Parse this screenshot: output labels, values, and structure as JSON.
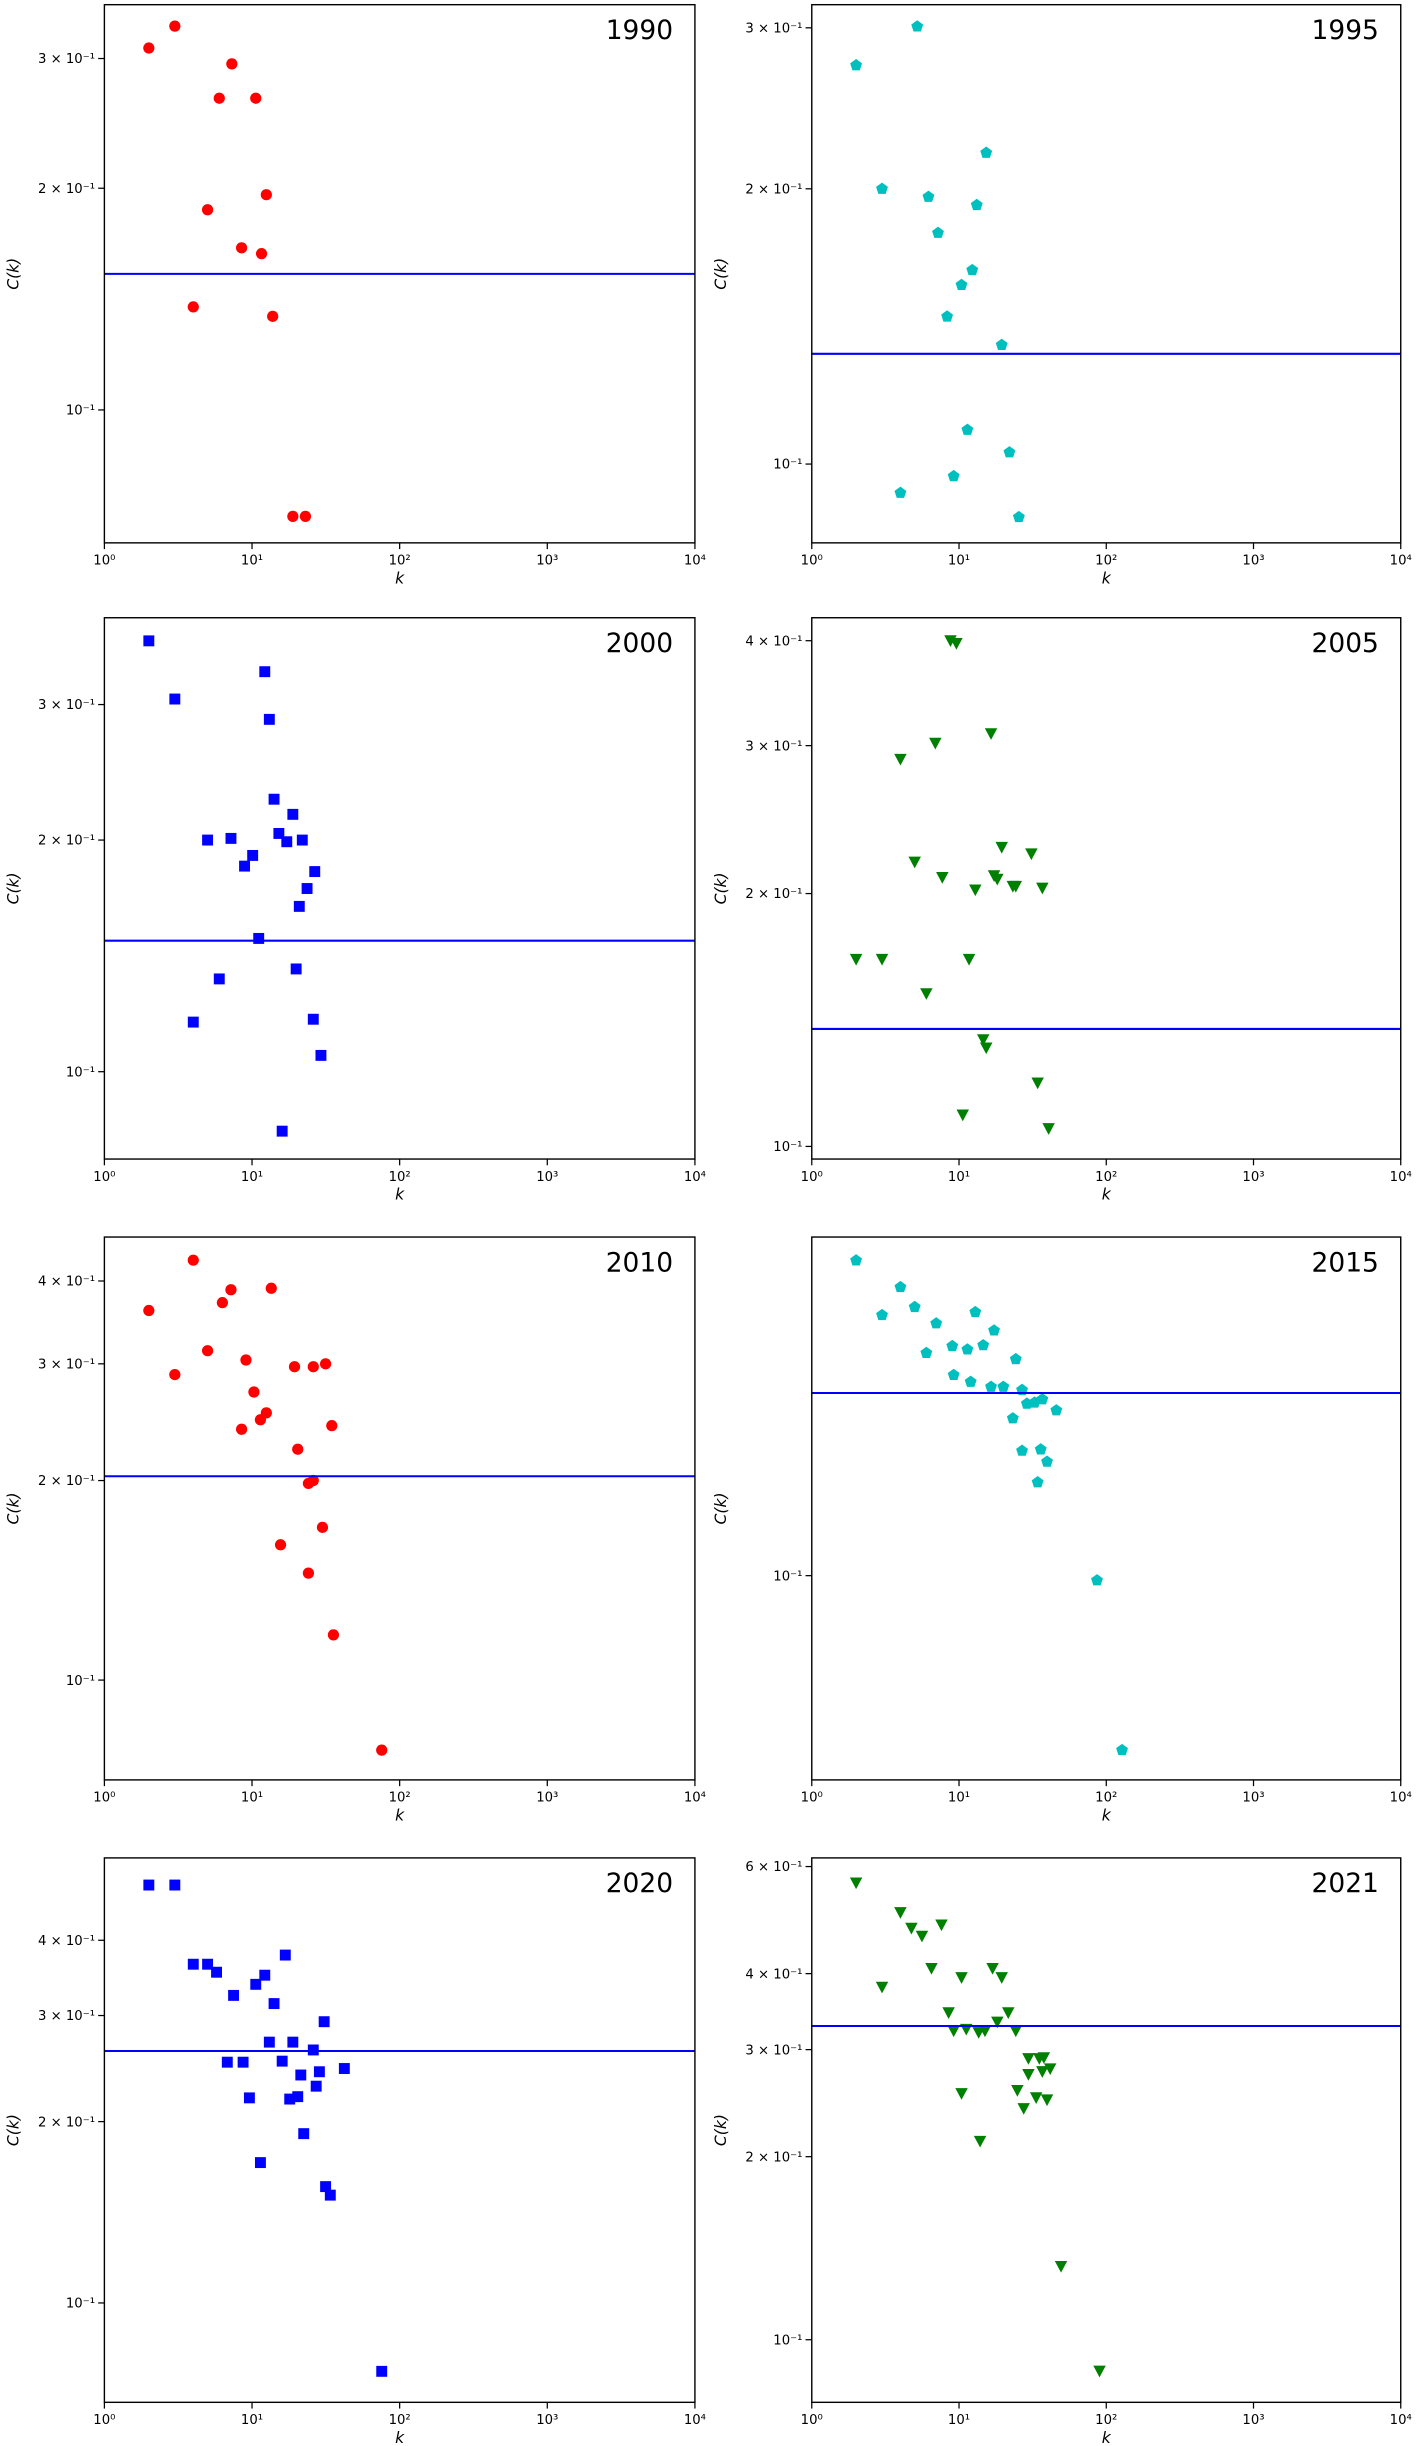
{
  "chart_data": [
    {
      "type": "scatter",
      "title": "1990",
      "xlabel": "k",
      "ylabel": "C(k)",
      "xscale": "log",
      "yscale": "log",
      "marker": "o",
      "color": "#ff0000",
      "x": [
        2,
        3,
        7.3,
        6,
        10.6,
        5,
        12.5,
        8.5,
        11.6,
        4,
        13.8,
        18.9,
        23
      ],
      "values": [
        0.31,
        0.332,
        0.295,
        0.265,
        0.265,
        0.187,
        0.196,
        0.166,
        0.163,
        0.138,
        0.134,
        0.0717,
        0.0717
      ],
      "hline": {
        "value": 0.153,
        "color": "#0000ff"
      },
      "xlim": [
        1,
        10000
      ],
      "xticks": [
        {
          "value": 1,
          "label": "10⁰"
        },
        {
          "value": 10,
          "label": "10¹"
        },
        {
          "value": 100,
          "label": "10²"
        },
        {
          "value": 1000,
          "label": "10³"
        },
        {
          "value": 10000,
          "label": "10⁴"
        }
      ],
      "ylim": [
        0.066,
        0.355
      ],
      "yticks": [
        {
          "value": 0.1,
          "label": "10⁻¹"
        },
        {
          "value": 0.2,
          "label": "2 × 10⁻¹"
        },
        {
          "value": 0.3,
          "label": "3 × 10⁻¹"
        }
      ]
    },
    {
      "type": "scatter",
      "title": "1995",
      "xlabel": "k",
      "ylabel": "C(k)",
      "xscale": "log",
      "yscale": "log",
      "marker": "p",
      "color": "#00bfbf",
      "x": [
        5.2,
        2,
        15.3,
        3,
        6.2,
        13.2,
        7.2,
        12.3,
        10.4,
        8.3,
        19.5,
        11.4,
        22,
        9.2,
        4,
        25.5
      ],
      "values": [
        0.301,
        0.273,
        0.219,
        0.2,
        0.196,
        0.192,
        0.179,
        0.163,
        0.157,
        0.145,
        0.135,
        0.109,
        0.103,
        0.097,
        0.093,
        0.0875
      ],
      "hline": {
        "value": 0.132,
        "color": "#0000ff"
      },
      "xlim": [
        1,
        10000
      ],
      "xticks": [
        {
          "value": 1,
          "label": "10⁰"
        },
        {
          "value": 10,
          "label": "10¹"
        },
        {
          "value": 100,
          "label": "10²"
        },
        {
          "value": 1000,
          "label": "10³"
        },
        {
          "value": 10000,
          "label": "10⁴"
        }
      ],
      "ylim": [
        0.082,
        0.318
      ],
      "yticks": [
        {
          "value": 0.1,
          "label": "10⁻¹"
        },
        {
          "value": 0.2,
          "label": "2 × 10⁻¹"
        },
        {
          "value": 0.3,
          "label": "3 × 10⁻¹"
        }
      ]
    },
    {
      "type": "scatter",
      "title": "2000",
      "xlabel": "k",
      "ylabel": "C(k)",
      "xscale": "log",
      "yscale": "log",
      "marker": "s",
      "color": "#0000ff",
      "x": [
        2,
        3,
        12.2,
        13.1,
        14.1,
        5,
        7.2,
        15.2,
        18.9,
        10.1,
        17.2,
        21.9,
        8.9,
        26.6,
        23.6,
        20.9,
        11.1,
        19.9,
        6,
        26,
        4,
        29.3,
        16
      ],
      "values": [
        0.363,
        0.305,
        0.331,
        0.287,
        0.226,
        0.2,
        0.201,
        0.204,
        0.216,
        0.191,
        0.199,
        0.2,
        0.185,
        0.182,
        0.173,
        0.164,
        0.149,
        0.136,
        0.132,
        0.117,
        0.116,
        0.105,
        0.0837
      ],
      "hline": {
        "value": 0.148,
        "color": "#0000ff"
      },
      "xlim": [
        1,
        10000
      ],
      "xticks": [
        {
          "value": 1,
          "label": "10⁰"
        },
        {
          "value": 10,
          "label": "10¹"
        },
        {
          "value": 100,
          "label": "10²"
        },
        {
          "value": 1000,
          "label": "10³"
        },
        {
          "value": 10000,
          "label": "10⁴"
        }
      ],
      "ylim": [
        0.077,
        0.389
      ],
      "yticks": [
        {
          "value": 0.1,
          "label": "10⁻¹"
        },
        {
          "value": 0.2,
          "label": "2 × 10⁻¹"
        },
        {
          "value": 0.3,
          "label": "3 × 10⁻¹"
        }
      ]
    },
    {
      "type": "scatter",
      "title": "2005",
      "xlabel": "k",
      "ylabel": "C(k)",
      "xscale": "log",
      "yscale": "log",
      "marker": "v",
      "color": "#008000",
      "x": [
        8.75,
        9.6,
        6.9,
        16.5,
        4,
        5,
        7.7,
        19.5,
        31,
        12.9,
        17.3,
        18.2,
        23.2,
        24.3,
        36.8,
        2,
        3,
        6,
        11.7,
        14.6,
        15.3,
        34.2,
        40.6,
        10.6
      ],
      "values": [
        0.4,
        0.397,
        0.302,
        0.31,
        0.289,
        0.218,
        0.209,
        0.227,
        0.223,
        0.202,
        0.21,
        0.208,
        0.204,
        0.204,
        0.203,
        0.167,
        0.167,
        0.152,
        0.167,
        0.134,
        0.131,
        0.119,
        0.105,
        0.109
      ],
      "hline": {
        "value": 0.138,
        "color": "#0000ff"
      },
      "xlim": [
        1,
        10000
      ],
      "xticks": [
        {
          "value": 1,
          "label": "10⁰"
        },
        {
          "value": 10,
          "label": "10¹"
        },
        {
          "value": 100,
          "label": "10²"
        },
        {
          "value": 1000,
          "label": "10³"
        },
        {
          "value": 10000,
          "label": "10⁴"
        }
      ],
      "ylim": [
        0.0966,
        0.426
      ],
      "yticks": [
        {
          "value": 0.1,
          "label": "10⁻¹"
        },
        {
          "value": 0.2,
          "label": "2 × 10⁻¹"
        },
        {
          "value": 0.3,
          "label": "3 × 10⁻¹"
        },
        {
          "value": 0.4,
          "label": "4 × 10⁻¹"
        }
      ]
    },
    {
      "type": "scatter",
      "title": "2010",
      "xlabel": "k",
      "ylabel": "C(k)",
      "xscale": "log",
      "yscale": "log",
      "marker": "o",
      "color": "#ff0000",
      "x": [
        4,
        2,
        7.2,
        6.3,
        13.5,
        5,
        3,
        9.1,
        10.3,
        19.4,
        26,
        31.5,
        8.5,
        11.4,
        12.5,
        34.7,
        20.4,
        26,
        24.1,
        15.6,
        30,
        24.1,
        35.6,
        75.6
      ],
      "values": [
        0.43,
        0.361,
        0.388,
        0.371,
        0.39,
        0.314,
        0.289,
        0.304,
        0.272,
        0.297,
        0.297,
        0.3,
        0.239,
        0.247,
        0.253,
        0.242,
        0.223,
        0.2,
        0.198,
        0.16,
        0.17,
        0.145,
        0.117,
        0.0784
      ],
      "hline": {
        "value": 0.203,
        "color": "#0000ff"
      },
      "xlim": [
        1,
        10000
      ],
      "xticks": [
        {
          "value": 1,
          "label": "10⁰"
        },
        {
          "value": 10,
          "label": "10¹"
        },
        {
          "value": 100,
          "label": "10²"
        },
        {
          "value": 1000,
          "label": "10³"
        },
        {
          "value": 10000,
          "label": "10⁴"
        }
      ],
      "ylim": [
        0.0707,
        0.466
      ],
      "yticks": [
        {
          "value": 0.1,
          "label": "10⁻¹"
        },
        {
          "value": 0.2,
          "label": "2 × 10⁻¹"
        },
        {
          "value": 0.3,
          "label": "3 × 10⁻¹"
        },
        {
          "value": 0.4,
          "label": "4 × 10⁻¹"
        }
      ]
    },
    {
      "type": "scatter",
      "title": "2015",
      "xlabel": "k",
      "ylabel": "C(k)",
      "xscale": "log",
      "yscale": "log",
      "marker": "p",
      "color": "#00bfbf",
      "x": [
        2,
        3,
        4,
        5,
        7,
        6,
        12.9,
        9,
        14.6,
        11.4,
        17.3,
        24.3,
        9.2,
        12,
        16.5,
        20,
        26.8,
        28.9,
        32.6,
        23.2,
        36.8,
        45.8,
        26.8,
        35.9,
        39.6,
        34.2,
        86.5,
        128
      ],
      "values": [
        0.393,
        0.31,
        0.35,
        0.321,
        0.299,
        0.263,
        0.314,
        0.271,
        0.272,
        0.267,
        0.29,
        0.256,
        0.239,
        0.232,
        0.227,
        0.227,
        0.224,
        0.211,
        0.212,
        0.198,
        0.215,
        0.205,
        0.172,
        0.173,
        0.164,
        0.15,
        0.098,
        0.0469
      ],
      "hline": {
        "value": 0.221,
        "color": "#0000ff"
      },
      "xlim": [
        1,
        10000
      ],
      "xticks": [
        {
          "value": 1,
          "label": "10⁰"
        },
        {
          "value": 10,
          "label": "10¹"
        },
        {
          "value": 100,
          "label": "10²"
        },
        {
          "value": 1000,
          "label": "10³"
        },
        {
          "value": 10000,
          "label": "10⁴"
        }
      ],
      "ylim": [
        0.0412,
        0.435
      ],
      "yticks": [
        {
          "value": 0.1,
          "label": "10⁻¹"
        }
      ]
    },
    {
      "type": "scatter",
      "title": "2020",
      "xlabel": "k",
      "ylabel": "C(k)",
      "xscale": "log",
      "yscale": "log",
      "marker": "s",
      "color": "#0000ff",
      "x": [
        2,
        3,
        4,
        5,
        5.75,
        16.8,
        7.5,
        10.6,
        12.2,
        14.1,
        13.1,
        18.9,
        6.8,
        8.7,
        16,
        26,
        30.8,
        42.2,
        28.6,
        21.4,
        27.2,
        18,
        20.4,
        9.6,
        22.4,
        11.4,
        31.5,
        33.9,
        75.6
      ],
      "values": [
        0.494,
        0.494,
        0.365,
        0.365,
        0.354,
        0.378,
        0.324,
        0.338,
        0.35,
        0.314,
        0.271,
        0.271,
        0.251,
        0.251,
        0.252,
        0.263,
        0.293,
        0.245,
        0.242,
        0.239,
        0.229,
        0.218,
        0.22,
        0.219,
        0.191,
        0.171,
        0.156,
        0.151,
        0.077
      ],
      "hline": {
        "value": 0.262,
        "color": "#0000ff"
      },
      "xlim": [
        1,
        10000
      ],
      "xticks": [
        {
          "value": 1,
          "label": "10⁰"
        },
        {
          "value": 10,
          "label": "10¹"
        },
        {
          "value": 100,
          "label": "10²"
        },
        {
          "value": 1000,
          "label": "10³"
        },
        {
          "value": 10000,
          "label": "10⁴"
        }
      ],
      "ylim": [
        0.0684,
        0.548
      ],
      "yticks": [
        {
          "value": 0.1,
          "label": "10⁻¹"
        },
        {
          "value": 0.2,
          "label": "2 × 10⁻¹"
        },
        {
          "value": 0.3,
          "label": "3 × 10⁻¹"
        },
        {
          "value": 0.4,
          "label": "4 × 10⁻¹"
        }
      ]
    },
    {
      "type": "scatter",
      "title": "2021",
      "xlabel": "k",
      "ylabel": "C(k)",
      "xscale": "log",
      "yscale": "log",
      "marker": "v",
      "color": "#008000",
      "x": [
        2,
        3,
        4,
        4.75,
        5.6,
        7.6,
        6.5,
        16.9,
        19.5,
        8.5,
        10.4,
        9.2,
        13.6,
        11.2,
        15,
        18.2,
        21.6,
        24.3,
        29.6,
        35.1,
        37.7,
        29.6,
        36.8,
        41.6,
        10.4,
        13.9,
        33.4,
        39.6,
        27.5,
        24.9,
        49.3,
        90
      ],
      "values": [
        0.564,
        0.38,
        0.504,
        0.475,
        0.461,
        0.481,
        0.408,
        0.408,
        0.394,
        0.345,
        0.394,
        0.322,
        0.32,
        0.324,
        0.322,
        0.333,
        0.345,
        0.322,
        0.29,
        0.29,
        0.291,
        0.273,
        0.276,
        0.279,
        0.254,
        0.212,
        0.25,
        0.248,
        0.24,
        0.257,
        0.132,
        0.0888
      ],
      "hline": {
        "value": 0.328,
        "color": "#0000ff"
      },
      "xlim": [
        1,
        10000
      ],
      "xticks": [
        {
          "value": 1,
          "label": "10⁰"
        },
        {
          "value": 10,
          "label": "10¹"
        },
        {
          "value": 100,
          "label": "10²"
        },
        {
          "value": 1000,
          "label": "10³"
        },
        {
          "value": 10000,
          "label": "10⁴"
        }
      ],
      "ylim": [
        0.0789,
        0.62
      ],
      "yticks": [
        {
          "value": 0.1,
          "label": "10⁻¹"
        },
        {
          "value": 0.2,
          "label": "2 × 10⁻¹"
        },
        {
          "value": 0.3,
          "label": "3 × 10⁻¹"
        },
        {
          "value": 0.4,
          "label": "4 × 10⁻¹"
        },
        {
          "value": 0.6,
          "label": "6 × 10⁻¹"
        }
      ]
    }
  ]
}
